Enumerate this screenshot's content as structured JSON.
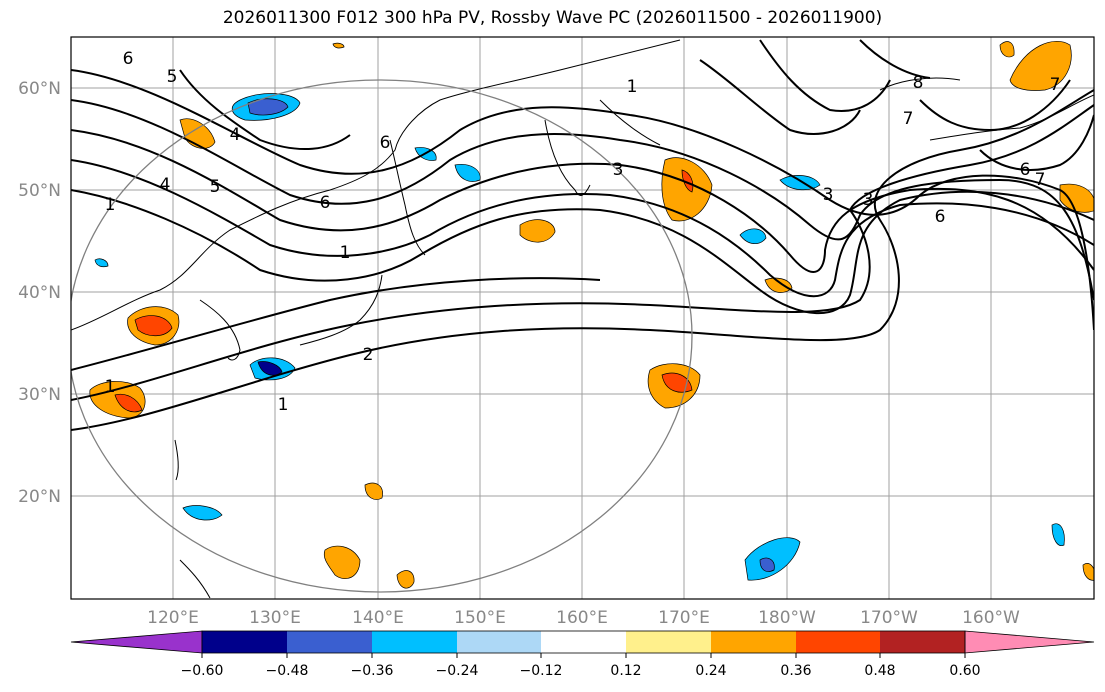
{
  "title": "2026011300 F012 300 hPa PV, Rossby Wave PC (2026011500 - 2026011900)",
  "lat_labels": [
    "60°N",
    "50°N",
    "40°N",
    "30°N",
    "20°N"
  ],
  "lon_labels": [
    "120°E",
    "130°E",
    "140°E",
    "150°E",
    "160°E",
    "170°E",
    "180°W",
    "170°W",
    "160°W"
  ],
  "colorbar": {
    "colors": [
      "#9932cc",
      "#00008b",
      "#3a5fd0",
      "#00bfff",
      "#add8f6",
      "#ffffff",
      "#fff08c",
      "#ffa500",
      "#ff4500",
      "#b22222",
      "#ff8cb4"
    ],
    "labels": [
      "−0.60",
      "−0.48",
      "−0.36",
      "−0.24",
      "−0.12",
      "0.12",
      "0.24",
      "0.36",
      "0.48",
      "0.60"
    ]
  },
  "contour_labels": [
    "6",
    "5",
    "4",
    "1",
    "4",
    "5",
    "6",
    "1",
    "6",
    "1",
    "3",
    "3",
    "3",
    "6",
    "7",
    "8",
    "7",
    "6",
    "7",
    "2",
    "1",
    "1"
  ],
  "colors": {
    "grid": "#a0a0a0",
    "circle": "#808080",
    "axis_text": "#888888"
  }
}
